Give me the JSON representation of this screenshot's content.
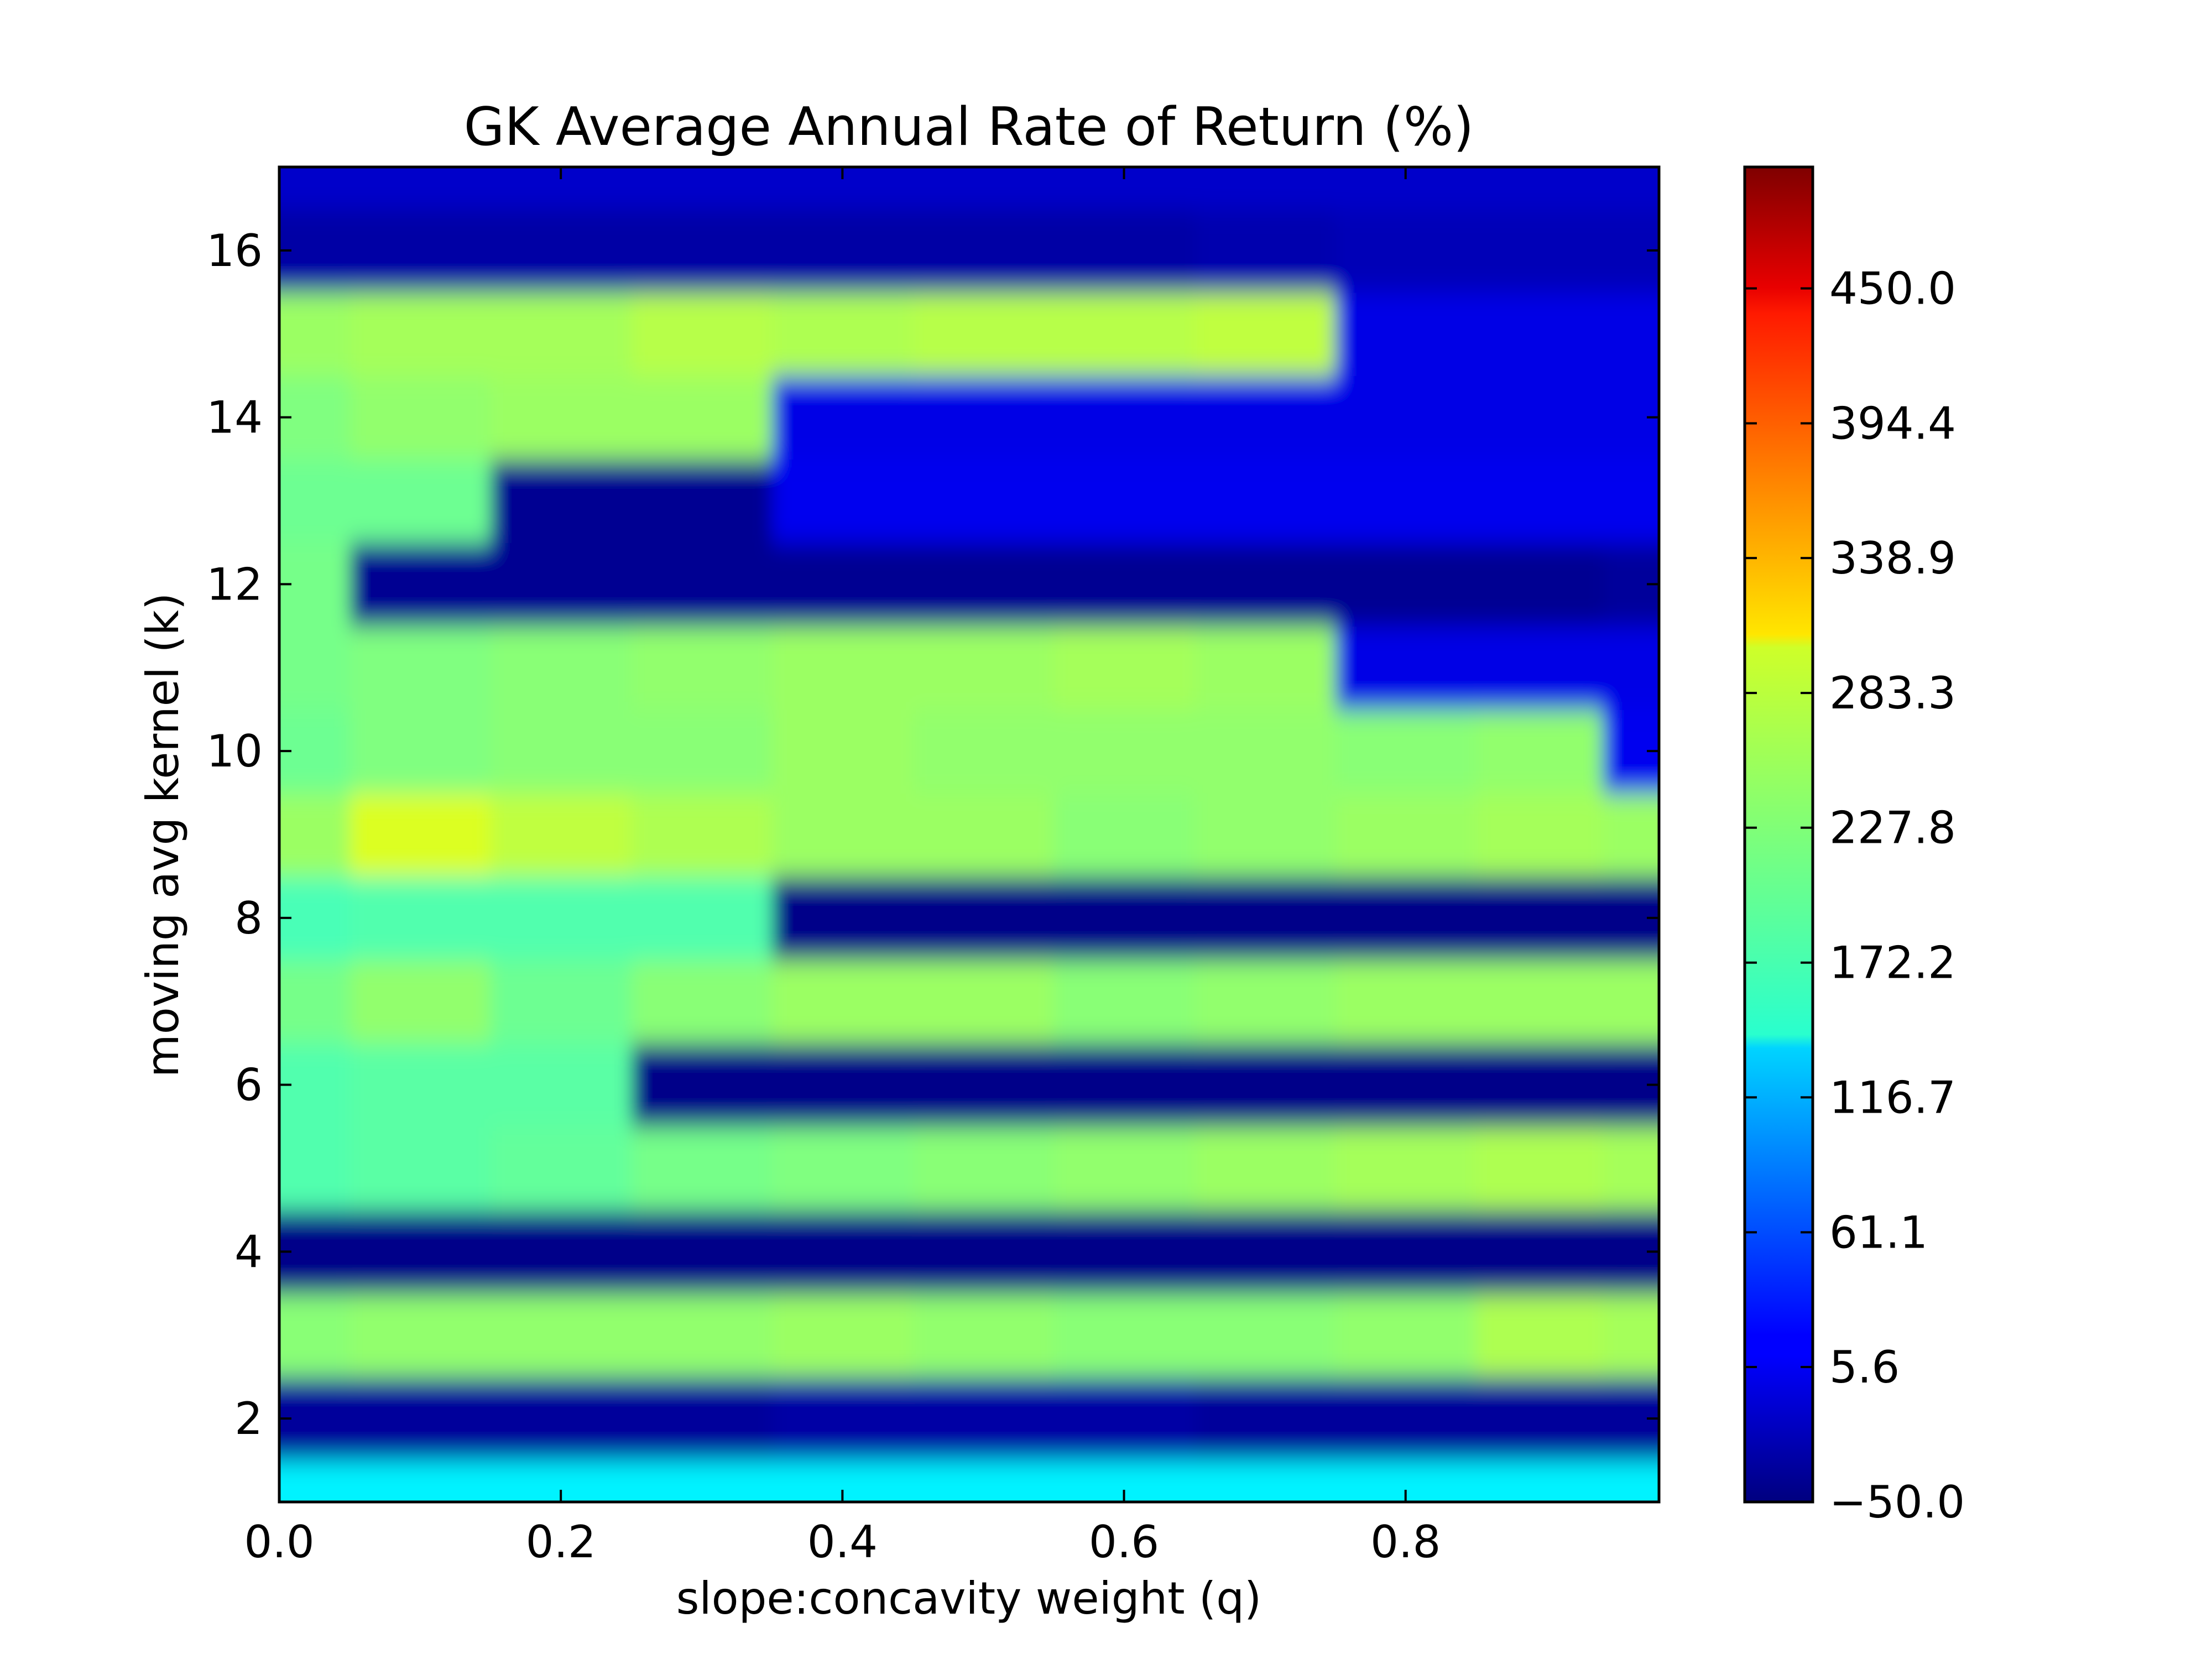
{
  "chart_data": {
    "type": "heatmap",
    "title": "GK Average Annual Rate of Return (%)",
    "xlabel": "slope:concavity weight (q)",
    "ylabel": "moving avg kernel (k)",
    "xlim": [
      0.0,
      0.98
    ],
    "ylim": [
      1,
      17
    ],
    "x_ticks": [
      "0.0",
      "0.2",
      "0.4",
      "0.6",
      "0.8"
    ],
    "y_ticks": [
      "2",
      "4",
      "6",
      "8",
      "10",
      "12",
      "14",
      "16"
    ],
    "colorbar": {
      "range": [
        -50.0,
        500.0
      ],
      "ticks": [
        "−50.0",
        "5.6",
        "61.1",
        "116.7",
        "172.2",
        "227.8",
        "283.3",
        "338.9",
        "394.4",
        "450.0"
      ],
      "colormap": "jet"
    },
    "grid": false,
    "x_grid": [
      0.0,
      0.1,
      0.2,
      0.3,
      0.4,
      0.5,
      0.6,
      0.7,
      0.8,
      0.9,
      0.98
    ],
    "rows": [
      {
        "k": 1,
        "values": [
          150,
          150,
          150,
          150,
          150,
          150,
          150,
          150,
          150,
          150,
          150
        ]
      },
      {
        "k": 2,
        "values": [
          -35,
          -35,
          -35,
          -35,
          -30,
          -30,
          -30,
          -35,
          -35,
          -35,
          -35
        ]
      },
      {
        "k": 3,
        "values": [
          230,
          235,
          235,
          235,
          240,
          235,
          230,
          230,
          235,
          250,
          245
        ]
      },
      {
        "k": 4,
        "values": [
          -45,
          -45,
          -45,
          -45,
          -45,
          -45,
          -45,
          -45,
          -45,
          -45,
          -45
        ]
      },
      {
        "k": 5,
        "values": [
          200,
          205,
          210,
          220,
          225,
          230,
          235,
          240,
          245,
          250,
          245
        ]
      },
      {
        "k": 6,
        "values": [
          200,
          205,
          205,
          -45,
          -45,
          -45,
          -45,
          -45,
          -45,
          -45,
          -45
        ]
      },
      {
        "k": 7,
        "values": [
          220,
          235,
          215,
          230,
          240,
          240,
          230,
          235,
          240,
          240,
          240
        ]
      },
      {
        "k": 8,
        "values": [
          195,
          200,
          200,
          200,
          -45,
          -45,
          -45,
          -45,
          -45,
          -45,
          -45
        ]
      },
      {
        "k": 9,
        "values": [
          240,
          275,
          260,
          250,
          240,
          240,
          230,
          235,
          240,
          245,
          240
        ]
      },
      {
        "k": 10,
        "values": [
          215,
          225,
          230,
          230,
          240,
          235,
          235,
          235,
          230,
          235,
          10
        ]
      },
      {
        "k": 11,
        "values": [
          220,
          225,
          230,
          235,
          240,
          240,
          245,
          240,
          5,
          5,
          5
        ]
      },
      {
        "k": 12,
        "values": [
          220,
          -40,
          -40,
          -40,
          -40,
          -40,
          -40,
          -40,
          -40,
          -40,
          -35
        ]
      },
      {
        "k": 13,
        "values": [
          215,
          215,
          -40,
          -40,
          10,
          10,
          10,
          10,
          10,
          10,
          10
        ]
      },
      {
        "k": 14,
        "values": [
          225,
          235,
          240,
          240,
          5,
          5,
          5,
          5,
          5,
          5,
          5
        ]
      },
      {
        "k": 15,
        "values": [
          240,
          245,
          245,
          255,
          250,
          255,
          255,
          260,
          5,
          5,
          5
        ]
      },
      {
        "k": 16,
        "values": [
          -30,
          -30,
          -30,
          -30,
          -30,
          -30,
          -30,
          -25,
          -20,
          -20,
          -20
        ]
      },
      {
        "k": 17,
        "values": [
          -10,
          -10,
          -10,
          -10,
          -10,
          -10,
          -10,
          -10,
          -10,
          -10,
          -10
        ]
      }
    ]
  }
}
